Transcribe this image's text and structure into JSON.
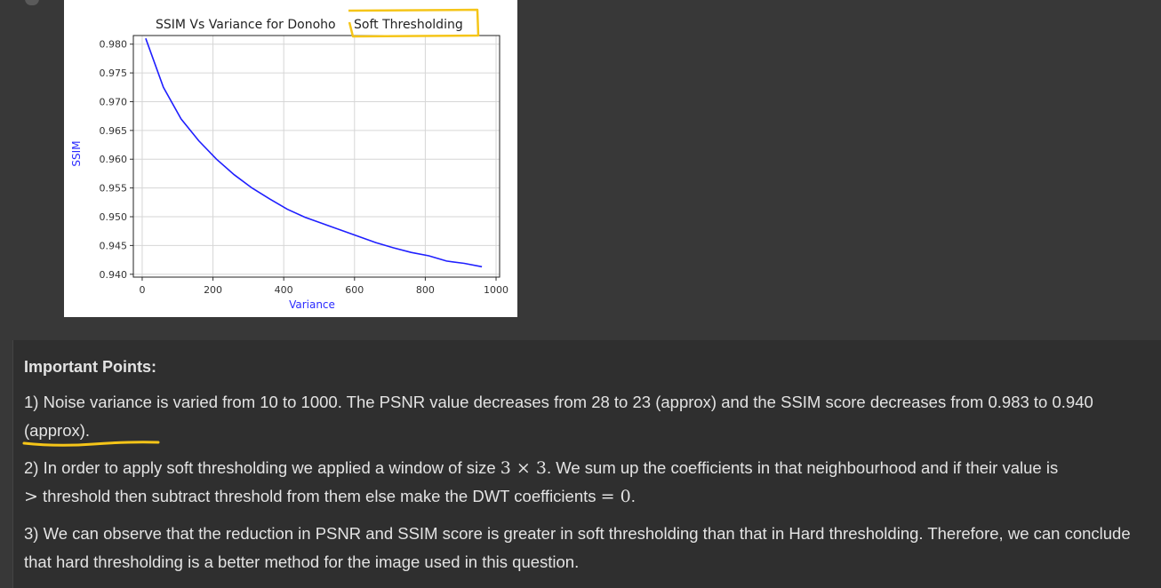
{
  "chart_data": {
    "type": "line",
    "title": "SSIM Vs Variance for Donoho Soft Thresholding",
    "title_visible_left": "SSIM Vs Variance for Donoho",
    "title_highlighted": "Soft Thresholding",
    "xlabel": "Variance",
    "ylabel": "SSIM",
    "xlim": [
      -25,
      1010
    ],
    "ylim": [
      0.9395,
      0.9815
    ],
    "xticks": [
      0,
      200,
      400,
      600,
      800,
      1000
    ],
    "xtick_labels": [
      "0",
      "200",
      "400",
      "600",
      "800",
      "1000"
    ],
    "yticks": [
      0.94,
      0.945,
      0.95,
      0.955,
      0.96,
      0.965,
      0.97,
      0.975,
      0.98
    ],
    "ytick_labels": [
      "0.940",
      "0.945",
      "0.950",
      "0.955",
      "0.960",
      "0.965",
      "0.970",
      "0.975",
      "0.980"
    ],
    "grid": true,
    "line_color": "#1f1fff",
    "highlight_color": "#f5c518",
    "x": [
      10,
      60,
      110,
      160,
      210,
      260,
      310,
      360,
      410,
      460,
      510,
      560,
      610,
      660,
      710,
      760,
      810,
      860,
      910,
      960
    ],
    "y": [
      0.981,
      0.9725,
      0.967,
      0.9632,
      0.96,
      0.9573,
      0.955,
      0.9531,
      0.9513,
      0.9499,
      0.9488,
      0.9477,
      0.9466,
      0.9455,
      0.9446,
      0.9438,
      0.9432,
      0.9423,
      0.9419,
      0.9413
    ]
  },
  "notes": {
    "heading": "Important Points:",
    "p1_text": "1) Noise variance is varied from 10 to 1000. The PSNR value decreases from 28 to 23 (approx) and the SSIM score decreases from 0.983 to 0.940 (approx).",
    "p2_before": "2) In order to apply soft thresholding we applied a window of size ",
    "p2_math_window": "3 × 3",
    "p2_middle": ". We sum up the coefficients in that neighbourhood and if their value is ",
    "p2_math_gt": ">",
    "p2_after_gt": " threshold then subtract threshold from them else make the DWT coefficients ",
    "p2_math_eq": "= 0",
    "p2_end": ".",
    "p3_text": "3) We can observe that the reduction in PSNR and SSIM score is greater in soft thresholding than that in Hard thresholding. Therefore, we can conclude that hard thresholding is a better method for the image used in this question."
  },
  "annotation_color": "#f5c518"
}
